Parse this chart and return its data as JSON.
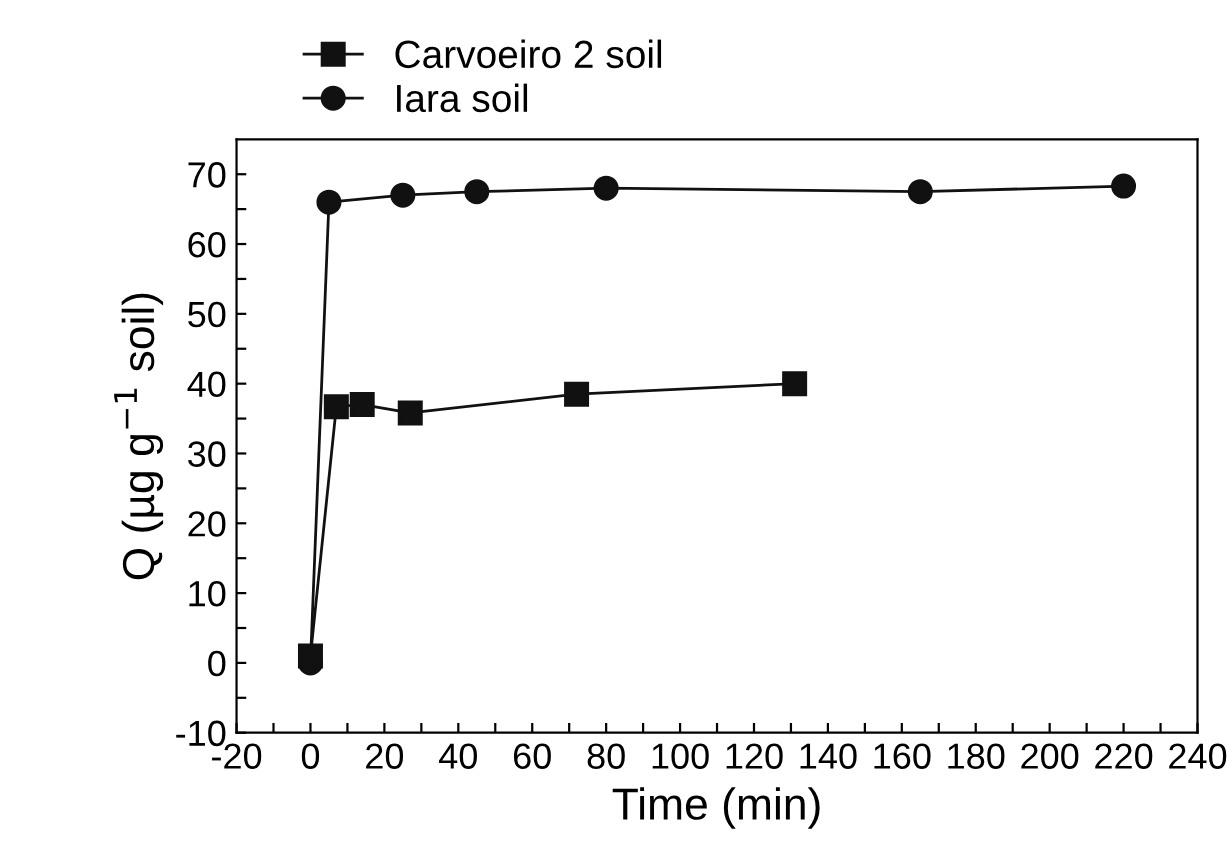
{
  "chart_data": {
    "type": "line",
    "xlabel": "Time (min)",
    "ylabel": "Q (µg g$^{−1}$ soil)",
    "xlim": [
      -20,
      240
    ],
    "ylim": [
      -10,
      75
    ],
    "xticks": [
      -20,
      {
        "value": -10,
        "label": null
      },
      0,
      {
        "value": 10,
        "label": null
      },
      20,
      {
        "value": 30,
        "label": null
      },
      40,
      {
        "value": 50,
        "label": null
      },
      60,
      {
        "value": 70,
        "label": null
      },
      80,
      {
        "value": 90,
        "label": null
      },
      100,
      {
        "value": 110,
        "label": null
      },
      120,
      {
        "value": 130,
        "label": null
      },
      140,
      {
        "value": 150,
        "label": null
      },
      160,
      {
        "value": 170,
        "label": null
      },
      180,
      {
        "value": 190,
        "label": null
      },
      200,
      {
        "value": 210,
        "label": null
      },
      220,
      {
        "value": 230,
        "label": null
      },
      240
    ],
    "yticks": [
      -10,
      {
        "value": -5,
        "label": null
      },
      0,
      {
        "value": 5,
        "label": null
      },
      10,
      {
        "value": 15,
        "label": null
      },
      20,
      {
        "value": 25,
        "label": null
      },
      30,
      {
        "value": 35,
        "label": null
      },
      40,
      {
        "value": 45,
        "label": null
      },
      50,
      {
        "value": 55,
        "label": null
      },
      60,
      {
        "value": 65,
        "label": null
      },
      70
    ],
    "grid": false,
    "legend": "top left",
    "line_style": "solid",
    "series": [
      {
        "name": "Carvoeiro 2 soil",
        "color": "#111111",
        "marker": "square",
        "x": [
          0,
          7,
          14,
          27,
          72,
          131
        ],
        "values": [
          1,
          36.7,
          37,
          35.8,
          38.5,
          40
        ]
      },
      {
        "name": "Iara soil",
        "color": "#111111",
        "marker": "circle",
        "x": [
          0,
          5,
          25,
          45,
          80,
          165,
          220
        ],
        "values": [
          0,
          66,
          67,
          67.5,
          68,
          67.5,
          68.3
        ]
      }
    ]
  }
}
